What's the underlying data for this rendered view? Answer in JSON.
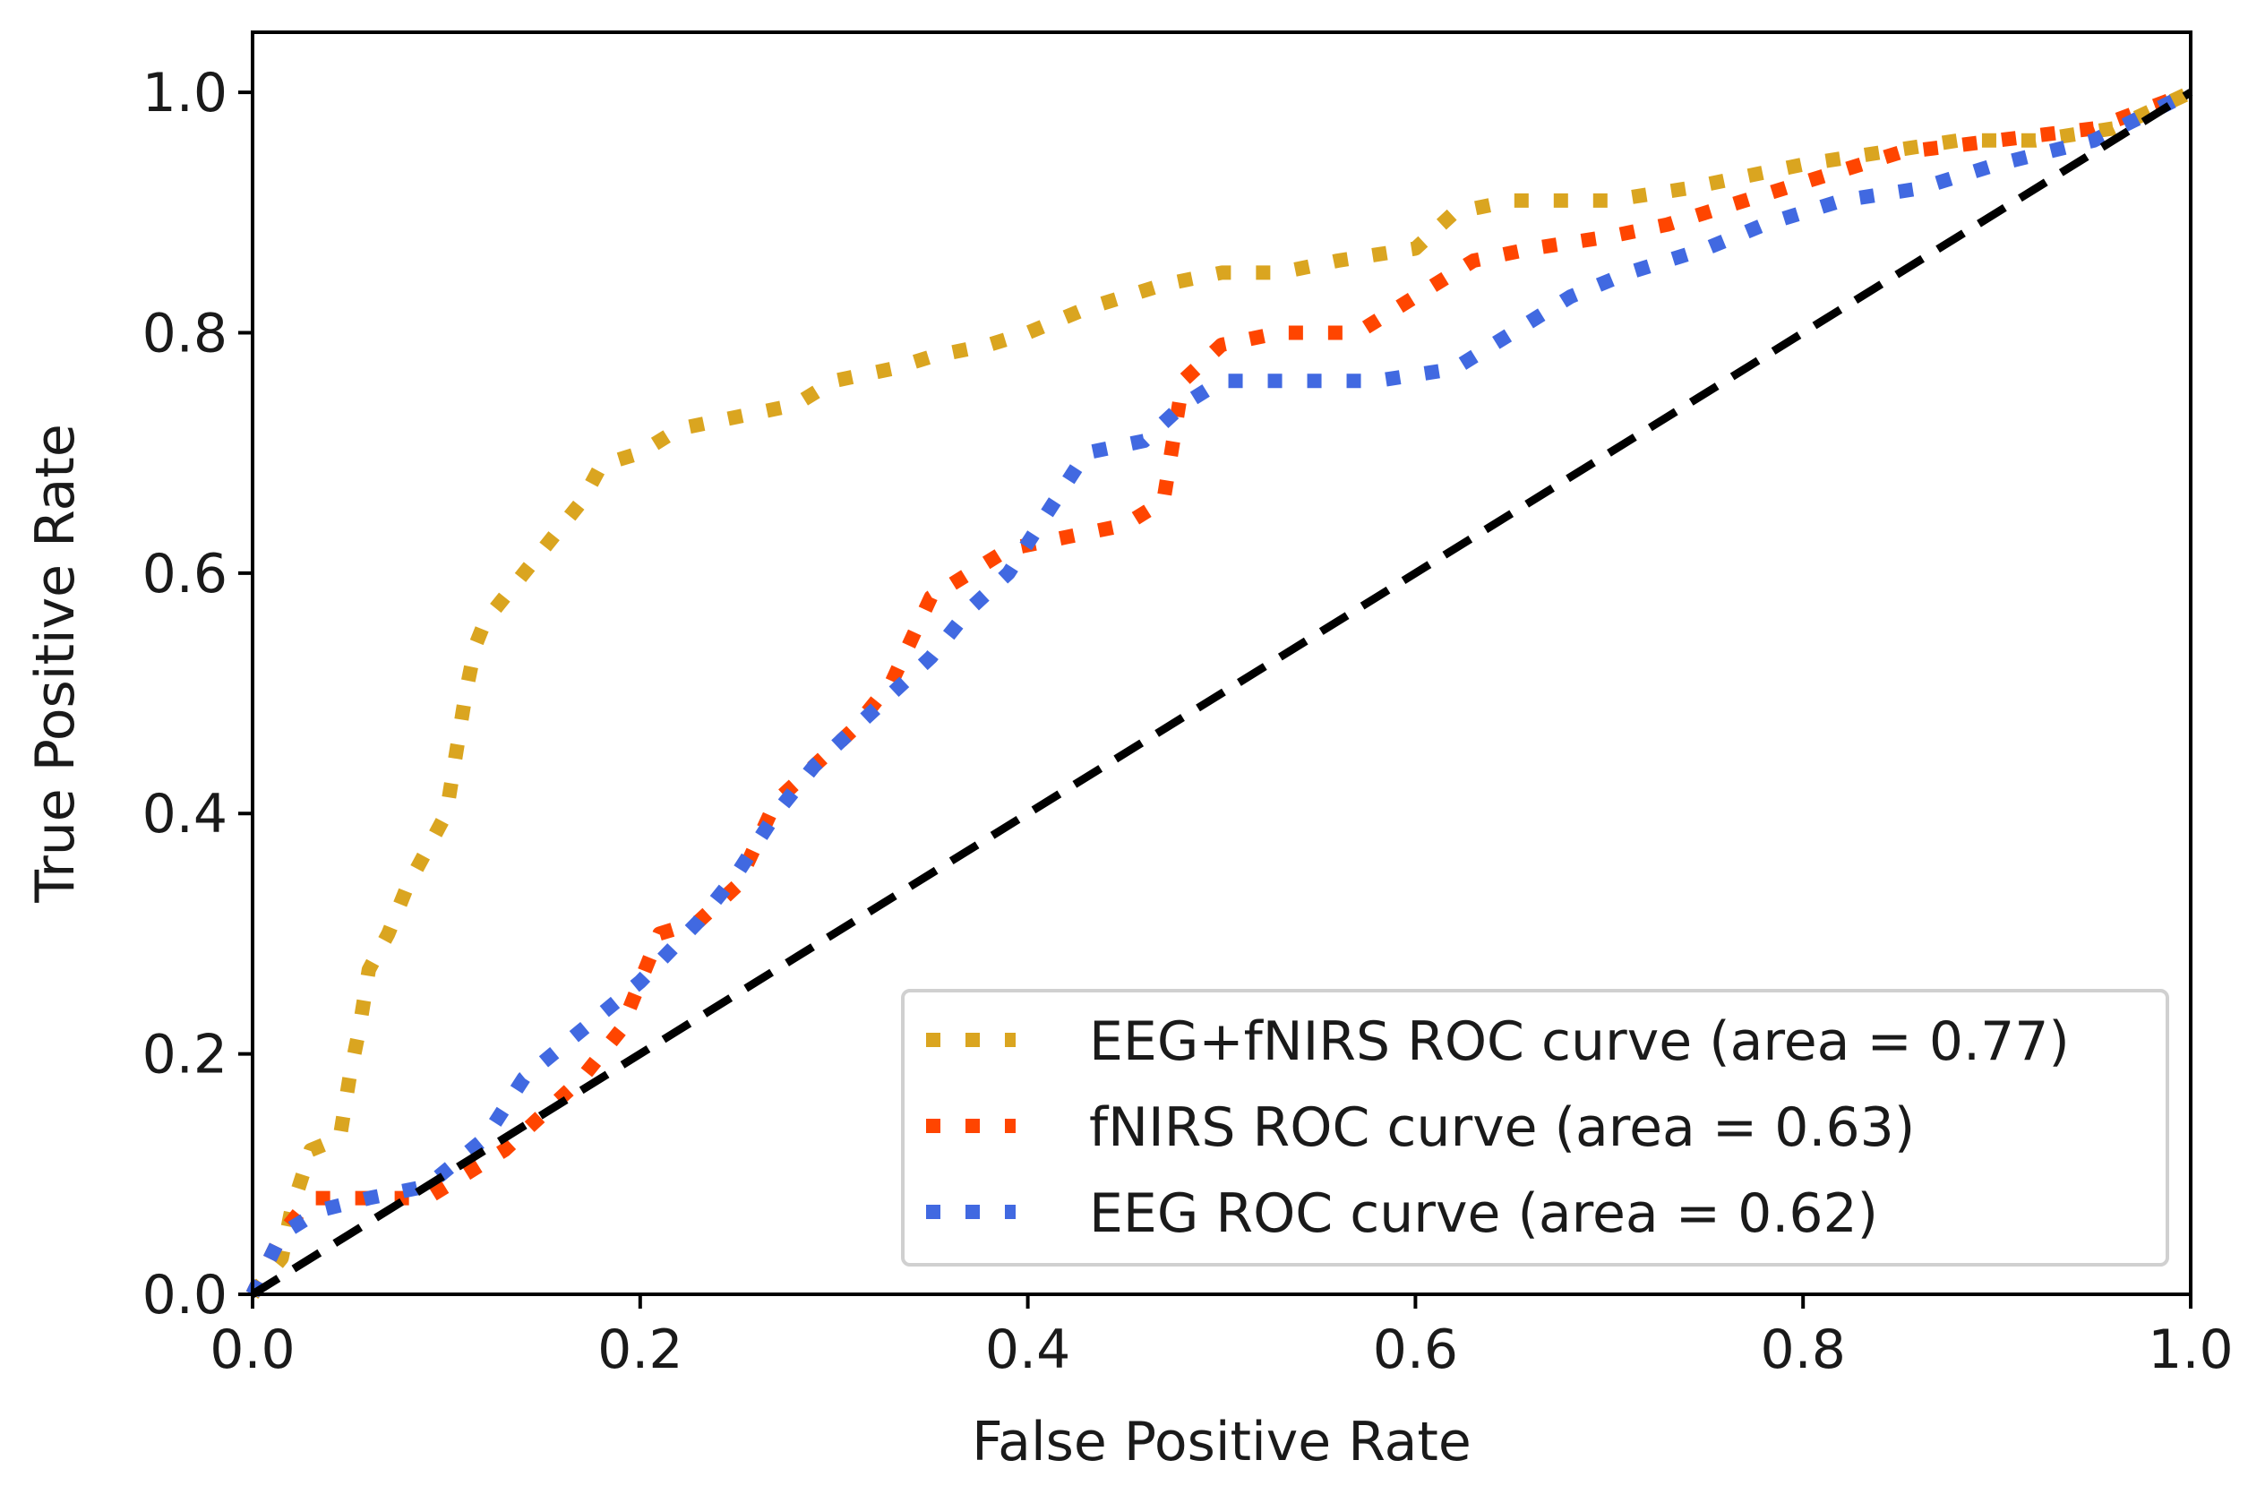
{
  "chart_data": {
    "type": "line",
    "title": "",
    "xlabel": "False Positive Rate",
    "ylabel": "True Positive Rate",
    "xlim": [
      0.0,
      1.0
    ],
    "ylim": [
      0.0,
      1.05
    ],
    "xticks": [
      0.0,
      0.2,
      0.4,
      0.6,
      0.8,
      1.0
    ],
    "yticks": [
      0.0,
      0.2,
      0.4,
      0.6,
      0.8,
      1.0
    ],
    "xtick_labels": [
      "0.0",
      "0.2",
      "0.4",
      "0.6",
      "0.8",
      "1.0"
    ],
    "ytick_labels": [
      "0.0",
      "0.2",
      "0.4",
      "0.6",
      "0.8",
      "1.0"
    ],
    "grid": false,
    "legend_position": "bottom-right",
    "series": [
      {
        "name": "EEG+fNIRS ROC curve (area = 0.77)",
        "color": "#daa520",
        "style": "dotted",
        "x": [
          0.0,
          0.015,
          0.02,
          0.03,
          0.045,
          0.05,
          0.055,
          0.06,
          0.07,
          0.08,
          0.09,
          0.1,
          0.105,
          0.11,
          0.115,
          0.12,
          0.13,
          0.14,
          0.16,
          0.17,
          0.18,
          0.2,
          0.22,
          0.25,
          0.28,
          0.3,
          0.33,
          0.35,
          0.38,
          0.4,
          0.43,
          0.47,
          0.5,
          0.53,
          0.56,
          0.6,
          0.62,
          0.65,
          0.7,
          0.74,
          0.77,
          0.8,
          0.84,
          0.88,
          0.92,
          0.96,
          1.0
        ],
        "y": [
          0.0,
          0.03,
          0.07,
          0.12,
          0.13,
          0.18,
          0.22,
          0.27,
          0.3,
          0.34,
          0.37,
          0.4,
          0.45,
          0.5,
          0.54,
          0.56,
          0.58,
          0.6,
          0.64,
          0.66,
          0.69,
          0.7,
          0.72,
          0.73,
          0.74,
          0.76,
          0.77,
          0.78,
          0.79,
          0.8,
          0.82,
          0.84,
          0.85,
          0.85,
          0.86,
          0.87,
          0.9,
          0.91,
          0.91,
          0.92,
          0.93,
          0.94,
          0.95,
          0.96,
          0.96,
          0.97,
          1.0
        ]
      },
      {
        "name": "fNIRS ROC curve (area = 0.63)",
        "color": "#ff4500",
        "style": "dotted",
        "x": [
          0.0,
          0.015,
          0.03,
          0.06,
          0.09,
          0.11,
          0.13,
          0.15,
          0.17,
          0.19,
          0.21,
          0.23,
          0.25,
          0.27,
          0.29,
          0.31,
          0.33,
          0.35,
          0.37,
          0.39,
          0.42,
          0.45,
          0.47,
          0.48,
          0.5,
          0.53,
          0.57,
          0.6,
          0.63,
          0.66,
          0.7,
          0.73,
          0.77,
          0.81,
          0.85,
          0.9,
          0.95,
          1.0
        ],
        "y": [
          0.0,
          0.05,
          0.08,
          0.08,
          0.08,
          0.1,
          0.12,
          0.15,
          0.18,
          0.22,
          0.3,
          0.31,
          0.34,
          0.41,
          0.44,
          0.47,
          0.51,
          0.58,
          0.6,
          0.62,
          0.63,
          0.64,
          0.66,
          0.76,
          0.79,
          0.8,
          0.8,
          0.83,
          0.86,
          0.87,
          0.88,
          0.89,
          0.91,
          0.93,
          0.95,
          0.96,
          0.97,
          1.0
        ]
      },
      {
        "name": "EEG ROC curve (area = 0.62)",
        "color": "#4169e1",
        "style": "dotted",
        "x": [
          0.0,
          0.015,
          0.035,
          0.06,
          0.09,
          0.12,
          0.14,
          0.17,
          0.2,
          0.23,
          0.25,
          0.27,
          0.29,
          0.31,
          0.33,
          0.35,
          0.37,
          0.39,
          0.41,
          0.43,
          0.46,
          0.48,
          0.5,
          0.54,
          0.58,
          0.62,
          0.65,
          0.68,
          0.71,
          0.75,
          0.78,
          0.82,
          0.86,
          0.9,
          0.95,
          1.0
        ],
        "y": [
          0.0,
          0.05,
          0.07,
          0.08,
          0.09,
          0.13,
          0.18,
          0.22,
          0.26,
          0.31,
          0.35,
          0.4,
          0.44,
          0.47,
          0.5,
          0.53,
          0.57,
          0.6,
          0.65,
          0.7,
          0.71,
          0.74,
          0.76,
          0.76,
          0.76,
          0.77,
          0.8,
          0.83,
          0.85,
          0.87,
          0.89,
          0.91,
          0.92,
          0.94,
          0.96,
          1.0
        ]
      },
      {
        "name": "",
        "color": "#000000",
        "style": "dashed",
        "x": [
          0.0,
          1.0
        ],
        "y": [
          0.0,
          1.0
        ]
      }
    ]
  }
}
